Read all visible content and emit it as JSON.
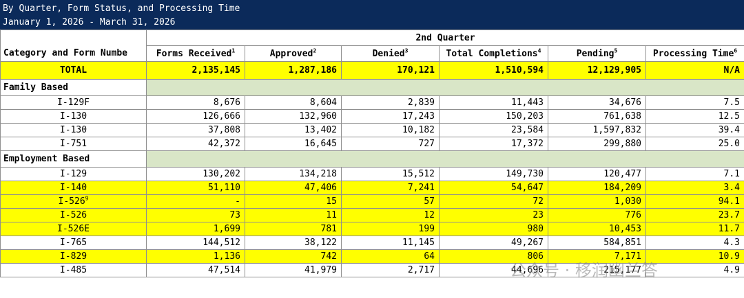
{
  "banner": {
    "line1": "By Quarter, Form Status, and Processing Time",
    "line2": "January 1, 2026 - March 31, 2026"
  },
  "quarter_label": "2nd Quarter",
  "columns": {
    "category": "Category and Form Numbe",
    "received": "Forms Received",
    "received_sup": "1",
    "approved": "Approved",
    "approved_sup": "2",
    "denied": "Denied",
    "denied_sup": "3",
    "completions": "Total Completions",
    "completions_sup": "4",
    "pending": "Pending",
    "pending_sup": "5",
    "processing": "Processing Time",
    "processing_sup": "6"
  },
  "total": {
    "label": "TOTAL",
    "received": "2,135,145",
    "approved": "1,287,186",
    "denied": "170,121",
    "completions": "1,510,594",
    "pending": "12,129,905",
    "processing": "N/A"
  },
  "family": {
    "label": "Family Based",
    "rows": [
      {
        "form": "I-129F",
        "received": "8,676",
        "approved": "8,604",
        "denied": "2,839",
        "completions": "11,443",
        "pending": "34,676",
        "processing": "7.5"
      },
      {
        "form": "I-130",
        "received": "126,666",
        "approved": "132,960",
        "denied": "17,243",
        "completions": "150,203",
        "pending": "761,638",
        "processing": "12.5"
      },
      {
        "form": "I-130",
        "received": "37,808",
        "approved": "13,402",
        "denied": "10,182",
        "completions": "23,584",
        "pending": "1,597,832",
        "processing": "39.4"
      },
      {
        "form": "I-751",
        "received": "42,372",
        "approved": "16,645",
        "denied": "727",
        "completions": "17,372",
        "pending": "299,880",
        "processing": "25.0"
      }
    ]
  },
  "employment": {
    "label": "Employment Based",
    "rows": [
      {
        "form": "I-129",
        "sup": "",
        "received": "130,202",
        "approved": "134,218",
        "denied": "15,512",
        "completions": "149,730",
        "pending": "120,477",
        "processing": "7.1"
      },
      {
        "form": "I-140",
        "sup": "",
        "received": "51,110",
        "approved": "47,406",
        "denied": "7,241",
        "completions": "54,647",
        "pending": "184,209",
        "processing": "3.4"
      },
      {
        "form": "I-526",
        "sup": "9",
        "received": "-",
        "approved": "15",
        "denied": "57",
        "completions": "72",
        "pending": "1,030",
        "processing": "94.1"
      },
      {
        "form": "I-526",
        "sup": "",
        "received": "73",
        "approved": "11",
        "denied": "12",
        "completions": "23",
        "pending": "776",
        "processing": "23.7"
      },
      {
        "form": "I-526E",
        "sup": "",
        "received": "1,699",
        "approved": "781",
        "denied": "199",
        "completions": "980",
        "pending": "10,453",
        "processing": "11.7"
      },
      {
        "form": "I-765",
        "sup": "",
        "received": "144,512",
        "approved": "38,122",
        "denied": "11,145",
        "completions": "49,267",
        "pending": "584,851",
        "processing": "4.3"
      },
      {
        "form": "I-829",
        "sup": "",
        "received": "1,136",
        "approved": "742",
        "denied": "64",
        "completions": "806",
        "pending": "7,171",
        "processing": "10.9"
      },
      {
        "form": "I-485",
        "sup": "",
        "received": "47,514",
        "approved": "41,979",
        "denied": "2,717",
        "completions": "44,696",
        "pending": "215,177",
        "processing": "4.9"
      }
    ]
  },
  "watermark": "公众号 · 移润幽兰答"
}
